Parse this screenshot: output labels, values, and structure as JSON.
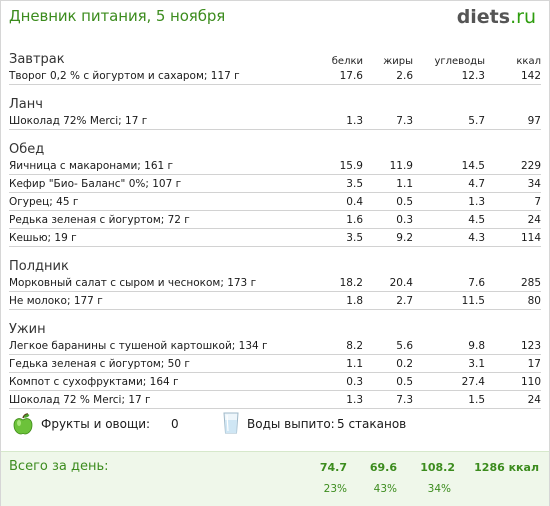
{
  "header": {
    "title": "Дневник питания, 5 ноября",
    "logo_main": "diets",
    "logo_tld": ".ru"
  },
  "columns": {
    "protein": "белки",
    "fat": "жиры",
    "carbs": "углеводы",
    "kcal": "ккал"
  },
  "meals": [
    {
      "name": "Завтрак",
      "items": [
        {
          "name": "Творог 0,2 % с йогуртом и сахаром; 117 г",
          "protein": "17.6",
          "fat": "2.6",
          "carbs": "12.3",
          "kcal": "142"
        }
      ]
    },
    {
      "name": "Ланч",
      "items": [
        {
          "name": "Шоколад 72% Merci; 17 г",
          "protein": "1.3",
          "fat": "7.3",
          "carbs": "5.7",
          "kcal": "97"
        }
      ]
    },
    {
      "name": "Обед",
      "items": [
        {
          "name": "Яичница с макаронами; 161 г",
          "protein": "15.9",
          "fat": "11.9",
          "carbs": "14.5",
          "kcal": "229"
        },
        {
          "name": "Кефир \"Био- Баланс\" 0%; 107 г",
          "protein": "3.5",
          "fat": "1.1",
          "carbs": "4.7",
          "kcal": "34"
        },
        {
          "name": "Огурец; 45 г",
          "protein": "0.4",
          "fat": "0.5",
          "carbs": "1.3",
          "kcal": "7"
        },
        {
          "name": "Редька зеленая с йогуртом; 72 г",
          "protein": "1.6",
          "fat": "0.3",
          "carbs": "4.5",
          "kcal": "24"
        },
        {
          "name": "Кешью; 19 г",
          "protein": "3.5",
          "fat": "9.2",
          "carbs": "4.3",
          "kcal": "114"
        }
      ]
    },
    {
      "name": "Полдник",
      "items": [
        {
          "name": "Морковный  салат с сыром и чесноком; 173 г",
          "protein": "18.2",
          "fat": "20.4",
          "carbs": "7.6",
          "kcal": "285"
        },
        {
          "name": "Не молоко; 177 г",
          "protein": "1.8",
          "fat": "2.7",
          "carbs": "11.5",
          "kcal": "80"
        }
      ]
    },
    {
      "name": "Ужин",
      "items": [
        {
          "name": "Легкое баранины с тушеной картошкой; 134 г",
          "protein": "8.2",
          "fat": "5.6",
          "carbs": "9.8",
          "kcal": "123"
        },
        {
          "name": "Гедька зеленая с йогуртом; 50 г",
          "protein": "1.1",
          "fat": "0.2",
          "carbs": "3.1",
          "kcal": "17"
        },
        {
          "name": "Компот с сухофруктами; 164 г",
          "protein": "0.3",
          "fat": "0.5",
          "carbs": "27.4",
          "kcal": "110"
        },
        {
          "name": "Шоколад 72 % Merci; 17 г",
          "protein": "1.3",
          "fat": "7.3",
          "carbs": "1.5",
          "kcal": "24"
        }
      ]
    }
  ],
  "extras": {
    "fruits_label": "Фрукты и овощи:",
    "fruits_value": "0",
    "water_label": "Воды выпито:",
    "water_value": "5 стаканов",
    "icons": [
      "green-apple-icon",
      "water-glass-icon"
    ]
  },
  "total": {
    "label": "Всего за день:",
    "protein": "74.7",
    "fat": "69.6",
    "carbs": "108.2",
    "kcal": "1286 ккал",
    "protein_pct": "23%",
    "fat_pct": "43%",
    "carbs_pct": "34%"
  },
  "colors": {
    "accent": "#3c8c1e",
    "logo_tld": "#2e9d0e",
    "total_bg": "#eff7ea",
    "row_line": "#d2d2d2"
  }
}
